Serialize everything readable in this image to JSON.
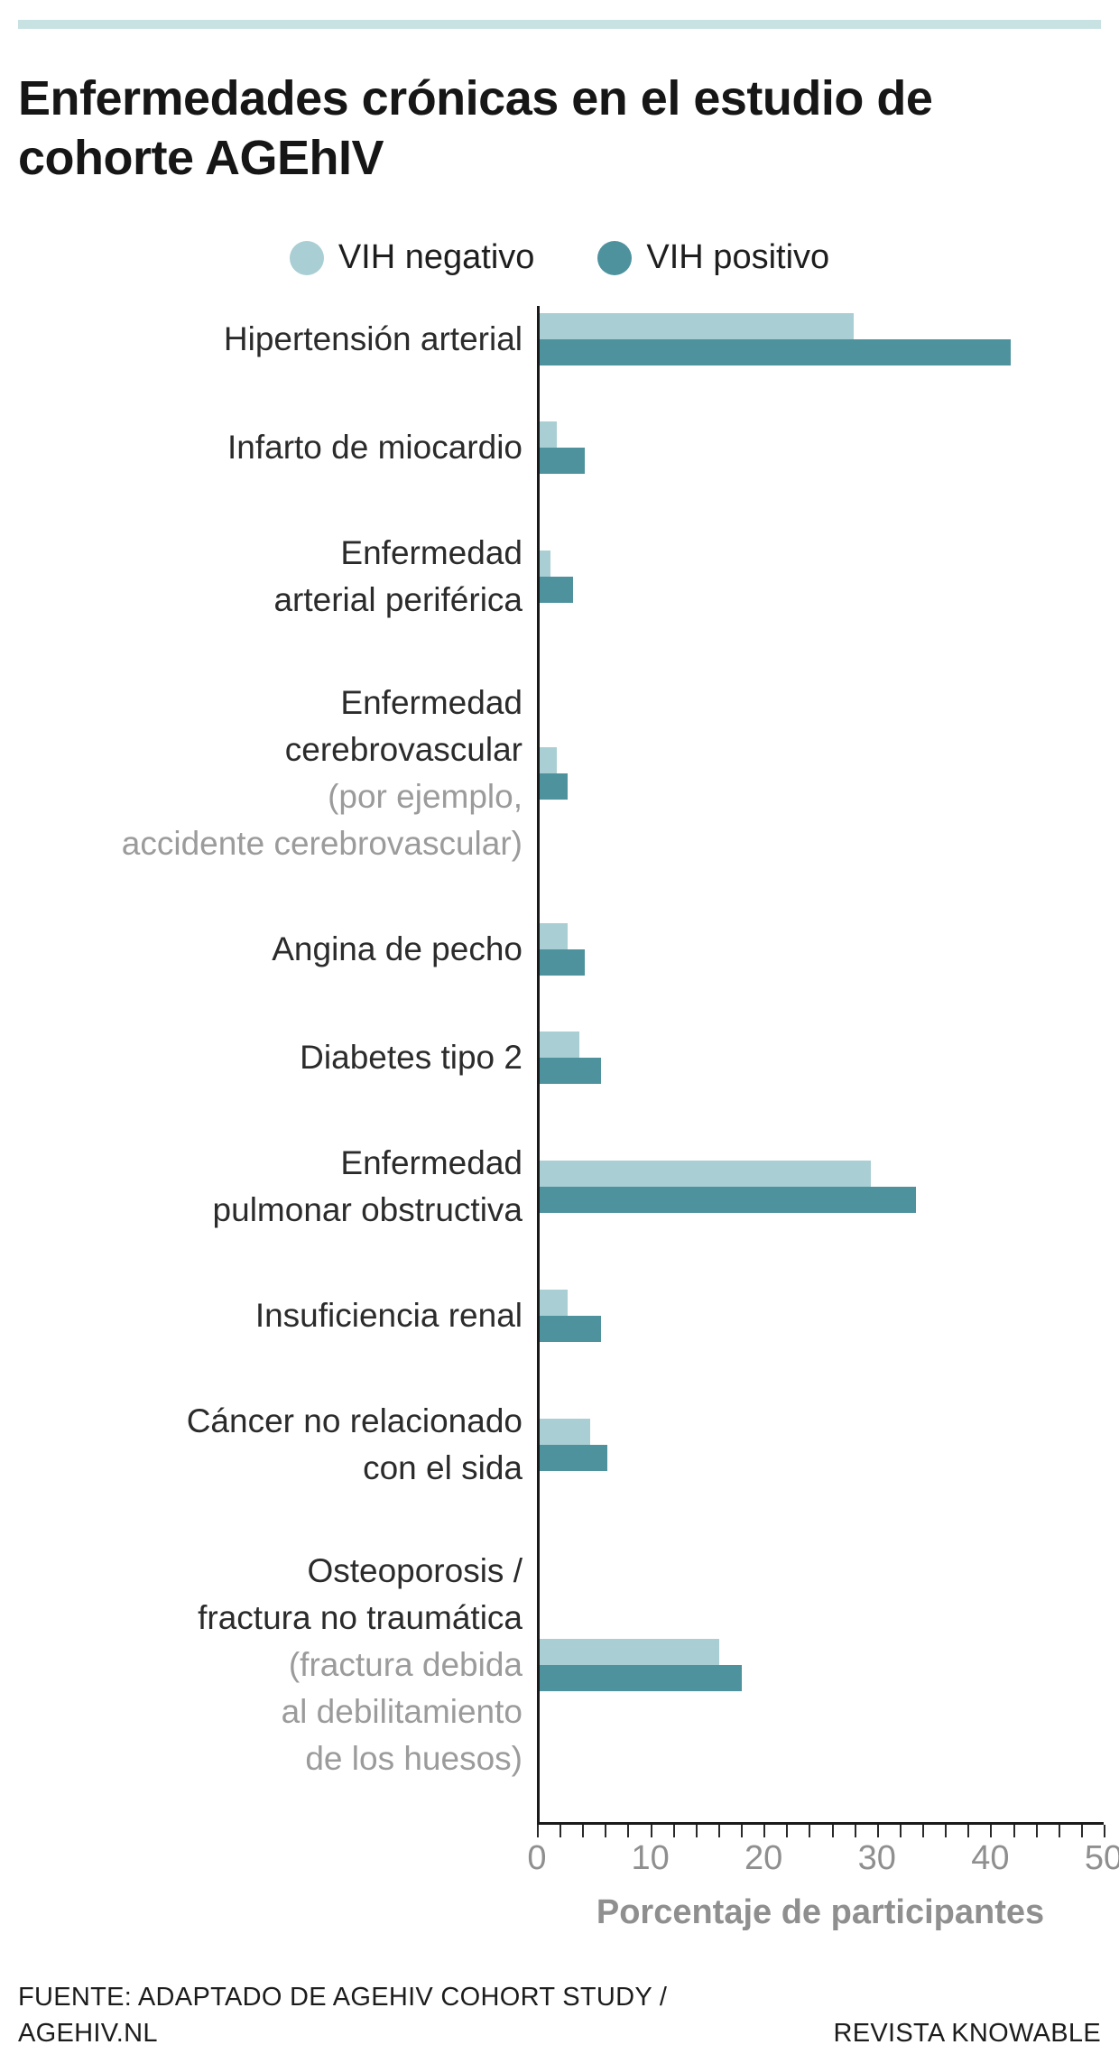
{
  "page": {
    "accent_rule_color": "#c8e2e3",
    "background": "#ffffff"
  },
  "header": {
    "title": "Enfermedades crónicas en el estudio de cohorte AGEhIV"
  },
  "chart_data": {
    "type": "bar",
    "orientation": "horizontal",
    "title": "Enfermedades crónicas en el estudio de cohorte AGEhIV",
    "xlabel": "Porcentaje de participantes",
    "xlim": [
      0,
      50
    ],
    "xticks": [
      0,
      10,
      20,
      30,
      40,
      50
    ],
    "minor_tick_step": 2,
    "grid": false,
    "legend_position": "top",
    "axis_color": "#1a1a1a",
    "tick_label_color": "#8f8f8f",
    "sublabel_color": "#9b9b9b",
    "categories": [
      {
        "label": "Hipertensión arterial",
        "sublabel": ""
      },
      {
        "label": "Infarto de miocardio",
        "sublabel": ""
      },
      {
        "label": "Enfermedad\narterial periférica",
        "sublabel": ""
      },
      {
        "label": "Enfermedad\ncerebrovascular",
        "sublabel": "(por ejemplo,\naccidente cerebrovascular)"
      },
      {
        "label": "Angina de pecho",
        "sublabel": ""
      },
      {
        "label": "Diabetes tipo 2",
        "sublabel": ""
      },
      {
        "label": "Enfermedad\npulmonar obstructiva",
        "sublabel": ""
      },
      {
        "label": "Insuficiencia renal",
        "sublabel": ""
      },
      {
        "label": "Cáncer no relacionado\ncon el sida",
        "sublabel": ""
      },
      {
        "label": "Osteoporosis /\nfractura no traumática",
        "sublabel": "(fractura debida\nal debilitamiento\nde los huesos)"
      }
    ],
    "series": [
      {
        "name": "VIH negativo",
        "color": "#a9ced3",
        "values": [
          28,
          1.5,
          1,
          1.5,
          2.5,
          3.5,
          29.5,
          2.5,
          4.5,
          16
        ]
      },
      {
        "name": "VIH positivo",
        "color": "#4e929e",
        "values": [
          42,
          4,
          3,
          2.5,
          4,
          5.5,
          33.5,
          5.5,
          6,
          18
        ]
      }
    ]
  },
  "footer": {
    "source": "FUENTE: ADAPTADO DE AGEHIV COHORT STUDY /\nAGEHIV.NL",
    "credit": "REVISTA KNOWABLE"
  }
}
